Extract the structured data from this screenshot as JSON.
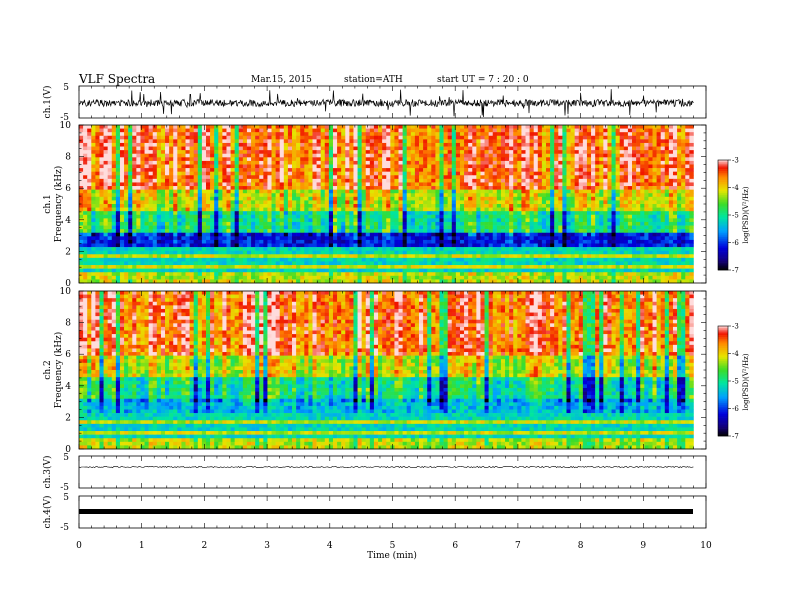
{
  "header": {
    "title": "VLF  Spectra",
    "date": "Mar.15, 2015",
    "station": "station=ATH",
    "start": "start  UT  =   7  : 20 : 0"
  },
  "chart_data": [
    {
      "type": "line",
      "id": "ch1-waveform",
      "ylabel": "ch.1(V)",
      "ylim": [
        -5,
        5
      ],
      "yticks": [
        "5",
        "-5"
      ],
      "xlim": [
        0,
        10
      ],
      "description_level": 0.2,
      "colors": {
        "trace": "#000000"
      }
    },
    {
      "type": "heatmap",
      "id": "ch1-spectrogram",
      "ylabel_top": "ch.1",
      "ylabel": "Frequency  (kHz)",
      "ylim": [
        0,
        10
      ],
      "yticks": [
        "0",
        "2",
        "4",
        "6",
        "8",
        "10"
      ],
      "xlim": [
        0,
        9.8
      ],
      "colorbar": {
        "label": "log(PSD)(V²/Hz)",
        "range": [
          -7,
          -3
        ],
        "ticks": [
          "-3",
          "-4",
          "-5",
          "-6",
          "-7"
        ]
      }
    },
    {
      "type": "heatmap",
      "id": "ch2-spectrogram",
      "ylabel_top": "ch.2",
      "ylabel": "Frequency  (kHz)",
      "ylim": [
        0,
        10
      ],
      "yticks": [
        "0",
        "2",
        "4",
        "6",
        "8",
        "10"
      ],
      "xlim": [
        0,
        9.8
      ],
      "colorbar": {
        "label": "log(PSD)(V²/Hz)",
        "range": [
          -7,
          -3
        ],
        "ticks": [
          "-3",
          "-4",
          "-5",
          "-6",
          "-7"
        ]
      }
    },
    {
      "type": "line",
      "id": "ch3-waveform",
      "ylabel": "ch.3(V)",
      "ylim": [
        -5,
        5
      ],
      "yticks": [
        "5",
        "-5"
      ],
      "xlim": [
        0,
        9.8
      ]
    },
    {
      "type": "line",
      "id": "ch4-waveform",
      "ylabel": "ch.4(V)",
      "ylim": [
        -5,
        5
      ],
      "yticks": [
        "5",
        "-5"
      ],
      "xlim": [
        0,
        9.8
      ]
    }
  ],
  "xaxis": {
    "label": "Time  (min)",
    "ticks": [
      "0",
      "1",
      "2",
      "3",
      "4",
      "5",
      "6",
      "7",
      "8",
      "9",
      "10"
    ],
    "range": [
      0,
      10
    ]
  }
}
